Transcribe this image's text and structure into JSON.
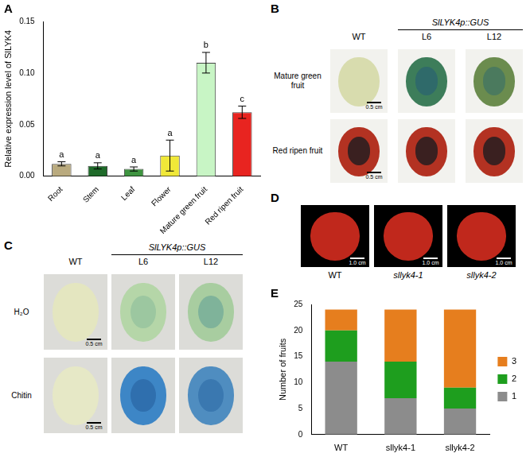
{
  "chart_data": [
    {
      "title": "A",
      "type": "bar",
      "categories": [
        "Root",
        "Stem",
        "Leaf",
        "Flower",
        "Mature green fruit",
        "Red ripen fruit"
      ],
      "values": [
        0.012,
        0.01,
        0.007,
        0.02,
        0.11,
        0.062
      ],
      "errors": [
        0.002,
        0.003,
        0.002,
        0.015,
        0.01,
        0.006
      ],
      "annotations": [
        "a",
        "a",
        "a",
        "a",
        "b",
        "c"
      ],
      "colors": [
        "#b9aa7e",
        "#1f6b2a",
        "#3e9440",
        "#f0e838",
        "#c8f5c5",
        "#e82420"
      ],
      "y_label": "Relative expression level of SlLYK4",
      "ylim": [
        0,
        0.15
      ],
      "yticks": [
        {
          "value": 0,
          "label": "0.00"
        },
        {
          "value": 0.05,
          "label": "0.05"
        },
        {
          "value": 0.1,
          "label": "0.10"
        },
        {
          "value": 0.15,
          "label": "0.15"
        }
      ],
      "grid": false
    },
    {
      "title": "E",
      "type": "bar",
      "stacked": true,
      "categories": [
        "WT",
        "sllyk4-1",
        "sllyk4-2"
      ],
      "series": [
        {
          "name": "1",
          "color": "#8c8c8c",
          "values": [
            14,
            7,
            5
          ]
        },
        {
          "name": "2",
          "color": "#1e9e1e",
          "values": [
            6,
            7,
            4
          ]
        },
        {
          "name": "3",
          "color": "#e67e1e",
          "values": [
            4,
            10,
            15
          ]
        }
      ],
      "y_label": "Number of fruits",
      "ylim": [
        0,
        25
      ],
      "yticks": [
        0,
        5,
        10,
        15,
        20,
        25
      ],
      "legend": "right",
      "grid": false
    }
  ],
  "image_panels": [
    {
      "title": "B",
      "group_label": "SlLYK4p::GUS",
      "columns": [
        "WT",
        "L6",
        "L12"
      ],
      "rows": [
        "Mature green fruit",
        "Red ripen fruit"
      ],
      "scale_bar": "0.5 cm"
    },
    {
      "title": "C",
      "group_label": "SlLYK4p::GUS",
      "columns": [
        "WT",
        "L6",
        "L12"
      ],
      "rows": [
        "H₂O",
        "Chitin"
      ],
      "scale_bar": "0.5 cm"
    },
    {
      "title": "D",
      "labels": [
        "WT",
        "sllyk4-1",
        "sllyk4-2"
      ],
      "scale_bar": "1.0 cm"
    }
  ]
}
